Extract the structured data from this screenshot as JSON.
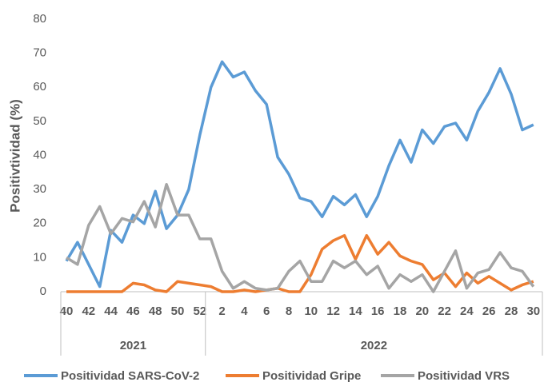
{
  "chart_data": {
    "type": "line",
    "y_label": "Positivtividad (%)",
    "categories": [
      "40",
      null,
      "42",
      null,
      "44",
      null,
      "46",
      null,
      "48",
      null,
      "50",
      null,
      "52",
      null,
      "2",
      null,
      "4",
      null,
      "6",
      null,
      "8",
      null,
      "10",
      null,
      "12",
      null,
      "14",
      null,
      "16",
      null,
      "18",
      null,
      "20",
      null,
      "22",
      null,
      "24",
      null,
      "26",
      null,
      "28",
      null,
      "30"
    ],
    "x_groups": [
      {
        "label": "2021",
        "count": 13
      },
      {
        "label": "2022",
        "count": 30
      }
    ],
    "series": [
      {
        "name": "Positividad SARS-CoV-2",
        "color": "#5b9bd5",
        "values": [
          9,
          14.5,
          8,
          1.5,
          18,
          14.5,
          22.5,
          20,
          29.5,
          18.5,
          22.5,
          30,
          46,
          60,
          67.5,
          63,
          64.5,
          59,
          55,
          39.5,
          34.5,
          27.5,
          26.5,
          22,
          28,
          25.5,
          28.5,
          22,
          28,
          37,
          44.5,
          38,
          47.5,
          43.5,
          48.5,
          49.5,
          44.5,
          53,
          58.5,
          65.5,
          58,
          47.5,
          49
        ]
      },
      {
        "name": "Positividad Gripe",
        "color": "#ed7d31",
        "values": [
          0,
          0,
          0,
          0,
          0,
          0,
          2.5,
          2,
          0.5,
          0,
          3,
          2.5,
          2,
          1.5,
          0,
          0,
          0.5,
          0,
          0.5,
          1,
          0,
          0,
          5,
          12.5,
          15,
          16.5,
          9.5,
          16.5,
          11,
          14.5,
          10.5,
          9,
          8,
          3.5,
          5.5,
          1.5,
          5.5,
          2.5,
          4.5,
          2.5,
          0.5,
          2,
          3
        ]
      },
      {
        "name": "Positividad VRS",
        "color": "#a5a5a5",
        "values": [
          10,
          8,
          19.5,
          25,
          17,
          21.5,
          20.5,
          26.5,
          19,
          31.5,
          22.5,
          22.5,
          15.5,
          15.5,
          6,
          1,
          3,
          1,
          0.5,
          1,
          6,
          9,
          3,
          3,
          9,
          7,
          9,
          5,
          7.5,
          1,
          5,
          3,
          5,
          0,
          6,
          12,
          1,
          5.5,
          6.5,
          11.5,
          7,
          6,
          1.5
        ]
      }
    ],
    "ylim": [
      0,
      80
    ],
    "yticks": [
      0,
      10,
      20,
      30,
      40,
      50,
      60,
      70,
      80
    ],
    "grid": false
  }
}
